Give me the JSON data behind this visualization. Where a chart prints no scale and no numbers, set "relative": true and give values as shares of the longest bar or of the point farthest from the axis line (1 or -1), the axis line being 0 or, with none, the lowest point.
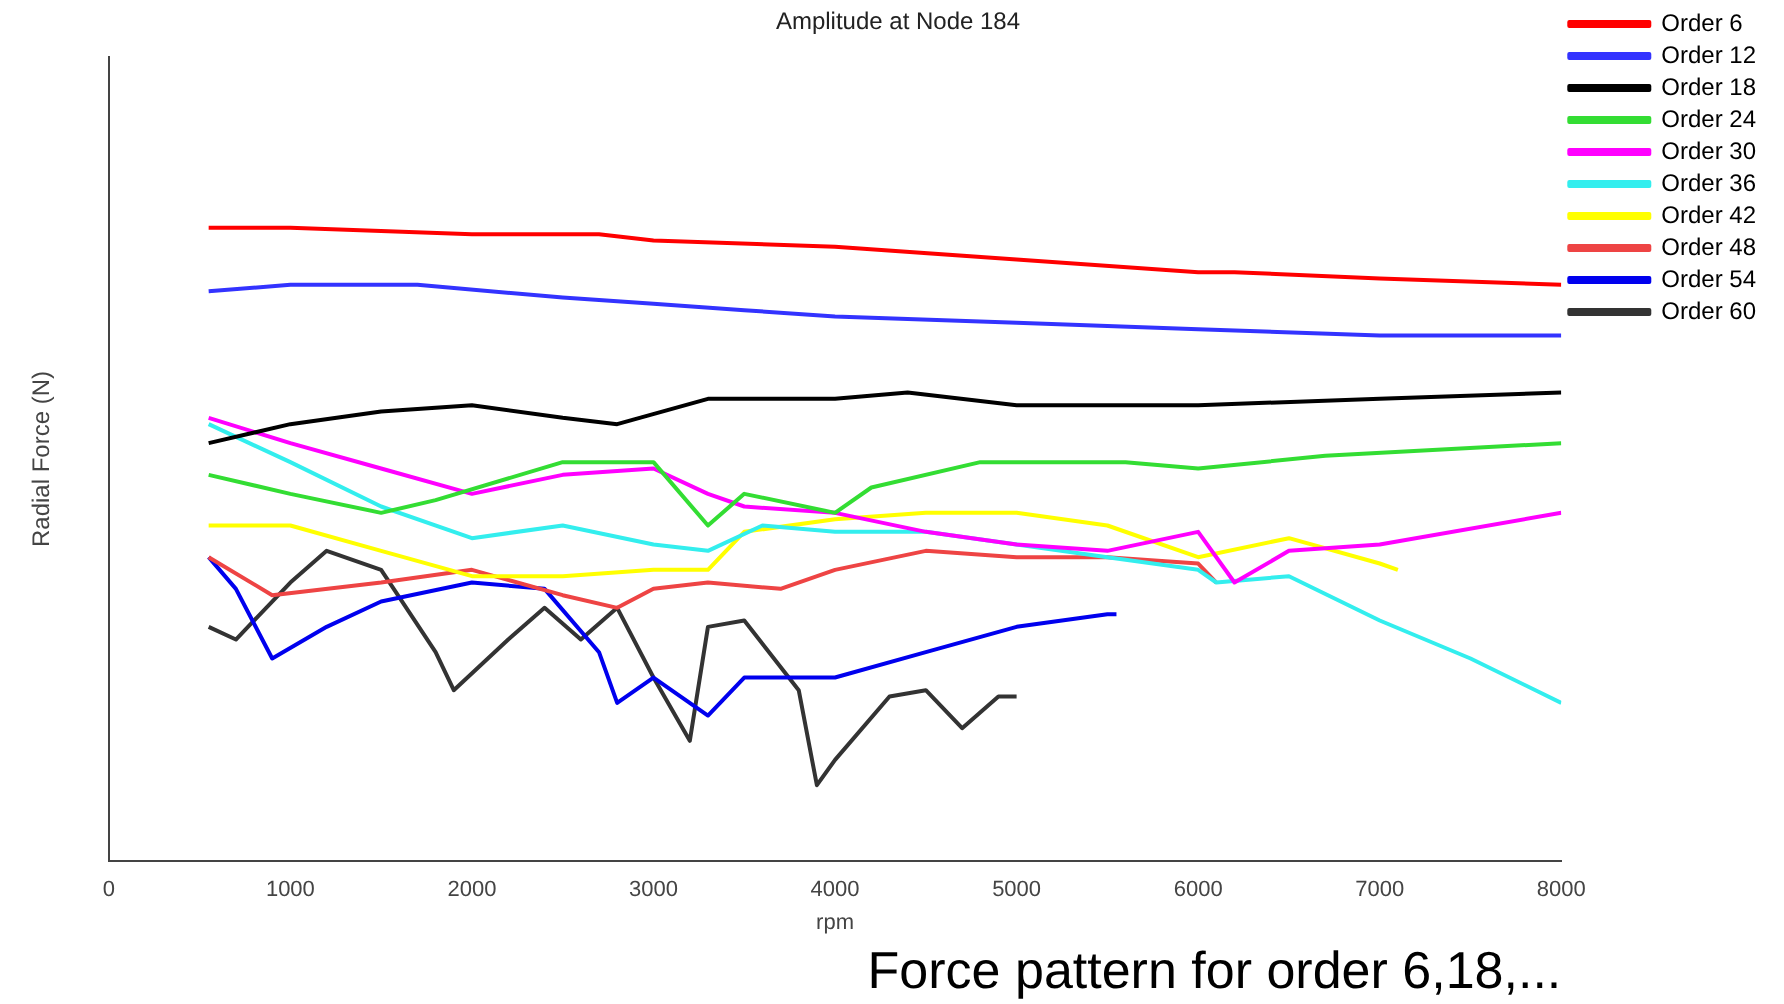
{
  "chart_data": {
    "type": "line",
    "title": "Amplitude at Node 184",
    "xlabel": "rpm",
    "ylabel": "Radial Force (N)",
    "relative": true,
    "xlim": [
      0,
      8000
    ],
    "xticks": [
      0,
      1000,
      2000,
      3000,
      4000,
      5000,
      6000,
      7000,
      8000
    ],
    "legend": "top right",
    "marker": "none",
    "line_style": "solid",
    "annotations": [
      "Force pattern for order 6,18,..."
    ],
    "series": [
      {
        "name": "Order 6",
        "color": "#ff0000",
        "x": [
          550,
          1000,
          2000,
          2700,
          3000,
          4000,
          5000,
          6000,
          6200,
          7000,
          8000
        ],
        "values": [
          1,
          1,
          0.99,
          0.99,
          0.98,
          0.97,
          0.95,
          0.93,
          0.93,
          0.92,
          0.91
        ]
      },
      {
        "name": "Order 12",
        "color": "#3333ff",
        "x": [
          550,
          1000,
          1700,
          2500,
          3000,
          3500,
          4000,
          5000,
          6000,
          7000,
          8000
        ],
        "values": [
          0.9,
          0.91,
          0.91,
          0.89,
          0.88,
          0.87,
          0.86,
          0.85,
          0.84,
          0.83,
          0.83
        ]
      },
      {
        "name": "Order 18",
        "color": "#000000",
        "x": [
          550,
          1000,
          1500,
          2000,
          2500,
          2800,
          3300,
          4000,
          4400,
          5000,
          6000,
          7000,
          8000
        ],
        "values": [
          0.66,
          0.69,
          0.71,
          0.72,
          0.7,
          0.69,
          0.73,
          0.73,
          0.74,
          0.72,
          0.72,
          0.73,
          0.74
        ]
      },
      {
        "name": "Order 24",
        "color": "#33dd33",
        "x": [
          550,
          1000,
          1500,
          1800,
          2500,
          3000,
          3300,
          3500,
          4000,
          4200,
          4800,
          5600,
          6000,
          6700,
          8000
        ],
        "values": [
          0.61,
          0.58,
          0.55,
          0.57,
          0.63,
          0.63,
          0.53,
          0.58,
          0.55,
          0.59,
          0.63,
          0.63,
          0.62,
          0.64,
          0.66
        ]
      },
      {
        "name": "Order 30",
        "color": "#ff00ff",
        "x": [
          550,
          1000,
          1500,
          2000,
          2500,
          3000,
          3300,
          3500,
          4000,
          4500,
          5000,
          5500,
          6000,
          6200,
          6500,
          7000,
          8000
        ],
        "values": [
          0.7,
          0.66,
          0.62,
          0.58,
          0.61,
          0.62,
          0.58,
          0.56,
          0.55,
          0.52,
          0.5,
          0.49,
          0.52,
          0.44,
          0.49,
          0.5,
          0.55
        ]
      },
      {
        "name": "Order 36",
        "color": "#33eeee",
        "x": [
          550,
          1000,
          1500,
          2000,
          2500,
          3000,
          3300,
          3600,
          4000,
          4500,
          5000,
          5500,
          6000,
          6100,
          6500,
          7000,
          7500,
          8000
        ],
        "values": [
          0.69,
          0.63,
          0.56,
          0.51,
          0.53,
          0.5,
          0.49,
          0.53,
          0.52,
          0.52,
          0.5,
          0.48,
          0.46,
          0.44,
          0.45,
          0.38,
          0.32,
          0.25
        ]
      },
      {
        "name": "Order 42",
        "color": "#ffff00",
        "x": [
          550,
          1000,
          1500,
          2000,
          2500,
          3000,
          3300,
          3500,
          4000,
          4500,
          5000,
          5500,
          6000,
          6500,
          7000,
          7100
        ],
        "values": [
          0.53,
          0.53,
          0.49,
          0.45,
          0.45,
          0.46,
          0.46,
          0.52,
          0.54,
          0.55,
          0.55,
          0.53,
          0.48,
          0.51,
          0.47,
          0.46
        ]
      },
      {
        "name": "Order 48",
        "color": "#ee4444",
        "x": [
          550,
          900,
          1500,
          2000,
          2500,
          2800,
          3000,
          3300,
          3700,
          4000,
          4500,
          5000,
          5500,
          6000,
          6100
        ],
        "values": [
          0.48,
          0.42,
          0.44,
          0.46,
          0.42,
          0.4,
          0.43,
          0.44,
          0.43,
          0.46,
          0.49,
          0.48,
          0.48,
          0.47,
          0.44
        ]
      },
      {
        "name": "Order 54",
        "color": "#0000ee",
        "x": [
          550,
          700,
          900,
          1200,
          1500,
          2000,
          2400,
          2700,
          2800,
          3000,
          3300,
          3500,
          4000,
          4500,
          5000,
          5500,
          5550
        ],
        "values": [
          0.48,
          0.43,
          0.32,
          0.37,
          0.41,
          0.44,
          0.43,
          0.33,
          0.25,
          0.29,
          0.23,
          0.29,
          0.29,
          0.33,
          0.37,
          0.39,
          0.39
        ]
      },
      {
        "name": "Order 60",
        "color": "#333333",
        "x": [
          550,
          700,
          1000,
          1200,
          1500,
          1800,
          1900,
          2200,
          2400,
          2600,
          2800,
          3000,
          3200,
          3300,
          3500,
          3800,
          3900,
          4000,
          4300,
          4500,
          4700,
          4900,
          5000
        ],
        "values": [
          0.37,
          0.35,
          0.44,
          0.49,
          0.46,
          0.33,
          0.27,
          0.35,
          0.4,
          0.35,
          0.4,
          0.29,
          0.19,
          0.37,
          0.38,
          0.27,
          0.12,
          0.16,
          0.26,
          0.27,
          0.21,
          0.26,
          0.26
        ]
      }
    ]
  }
}
